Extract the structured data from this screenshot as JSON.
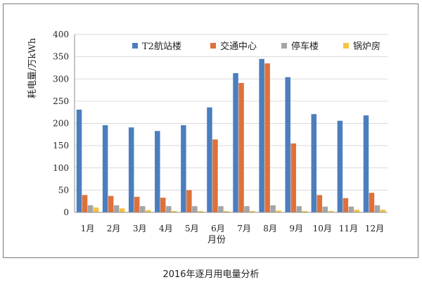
{
  "caption": "2016年逐月用电量分析",
  "chart_data": {
    "type": "bar",
    "title": "",
    "xlabel": "月份",
    "ylabel": "耗电量/万kWh",
    "ylim": [
      0,
      400
    ],
    "yticks": [
      0,
      50,
      100,
      150,
      200,
      250,
      300,
      350,
      400
    ],
    "grid": "horizontal",
    "legend_position": "top",
    "categories": [
      "1月",
      "2月",
      "3月",
      "4月",
      "5月",
      "6月",
      "7月",
      "8月",
      "9月",
      "10月",
      "11月",
      "12月"
    ],
    "series": [
      {
        "name": "T2航站楼",
        "color": "#4a7ebf",
        "values": [
          231,
          196,
          191,
          183,
          196,
          236,
          313,
          345,
          304,
          221,
          206,
          218
        ]
      },
      {
        "name": "交通中心",
        "color": "#e0703a",
        "values": [
          39,
          37,
          35,
          33,
          50,
          164,
          291,
          335,
          155,
          39,
          32,
          44
        ]
      },
      {
        "name": "停车楼",
        "color": "#a5a5a5",
        "values": [
          16,
          16,
          14,
          14,
          14,
          14,
          14,
          16,
          14,
          13,
          13,
          16
        ]
      },
      {
        "name": "锅炉房",
        "color": "#f5c342",
        "values": [
          11,
          9,
          5,
          3,
          3,
          3,
          3,
          4,
          3,
          3,
          6,
          6
        ]
      }
    ]
  }
}
